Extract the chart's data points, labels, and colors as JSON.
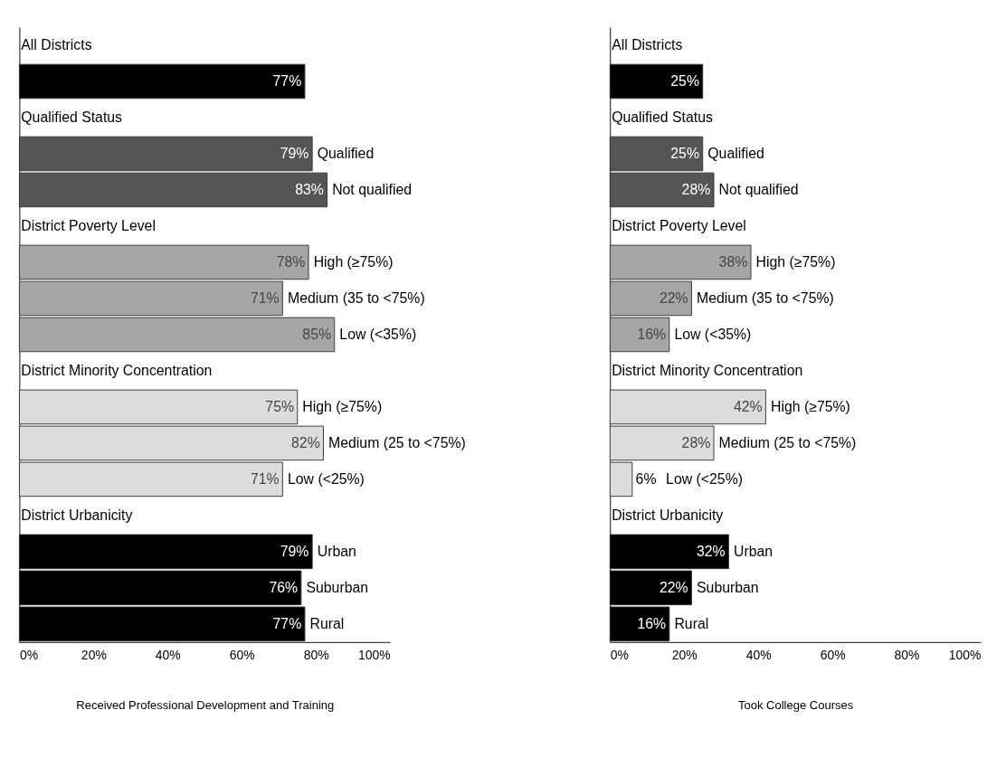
{
  "chart_data": [
    {
      "type": "bar",
      "orientation": "horizontal",
      "xlabel": "Received Professional Development and Training",
      "categories": [
        "All Districts",
        null,
        "Qualified Status",
        "Qualified",
        "Not qualified",
        "District Poverty Level",
        "High (≥75%)",
        "Medium (35 to <75%)",
        "Low (<35%)",
        "District Minority Concentration",
        "High (≥75%)",
        "Medium (25 to <75%)",
        "Low (<25%)",
        "District Urbanicity",
        "Urban",
        "Suburban",
        "Rural"
      ],
      "values": [
        null,
        77,
        null,
        79,
        83,
        null,
        78,
        71,
        85,
        null,
        75,
        82,
        71,
        null,
        79,
        76,
        77
      ],
      "value_labels": [
        null,
        "77%",
        null,
        "79%",
        "83%",
        null,
        "78%",
        "71%",
        "85%",
        null,
        "75%",
        "82%",
        "71%",
        null,
        "79%",
        "76%",
        "77%"
      ],
      "colors": [
        null,
        "#000000",
        null,
        "#555555",
        "#555555",
        null,
        "#a6a6a6",
        "#a6a6a6",
        "#a6a6a6",
        null,
        "#dcdcdc",
        "#dcdcdc",
        "#dcdcdc",
        null,
        "#000000",
        "#000000",
        "#000000"
      ],
      "xlim": [
        0,
        100
      ],
      "xticks": [
        {
          "value": 0,
          "label": "0%"
        },
        {
          "value": 20,
          "label": "20%"
        },
        {
          "value": 40,
          "label": "40%"
        },
        {
          "value": 60,
          "label": "60%"
        },
        {
          "value": 80,
          "label": "80%"
        },
        {
          "value": 100,
          "label": "100%"
        }
      ],
      "grid": false
    },
    {
      "type": "bar",
      "orientation": "horizontal",
      "xlabel": "Took College Courses",
      "categories": [
        "All Districts",
        null,
        "Qualified Status",
        "Qualified",
        "Not qualified",
        "District Poverty Level",
        "High (≥75%)",
        "Medium (35 to <75%)",
        "Low (<35%)",
        "District Minority Concentration",
        "High (≥75%)",
        "Medium (25 to <75%)",
        "Low (<25%)",
        "District Urbanicity",
        "Urban",
        "Suburban",
        "Rural"
      ],
      "values": [
        null,
        25,
        null,
        25,
        28,
        null,
        38,
        22,
        16,
        null,
        42,
        28,
        6,
        null,
        32,
        22,
        16
      ],
      "value_labels": [
        null,
        "25%",
        null,
        "25%",
        "28%",
        null,
        "38%",
        "22%",
        "16%",
        null,
        "42%",
        "28%",
        "6%",
        null,
        "32%",
        "22%",
        "16%"
      ],
      "colors": [
        null,
        "#000000",
        null,
        "#555555",
        "#555555",
        null,
        "#a6a6a6",
        "#a6a6a6",
        "#a6a6a6",
        null,
        "#dcdcdc",
        "#dcdcdc",
        "#dcdcdc",
        null,
        "#000000",
        "#000000",
        "#000000"
      ],
      "xlim": [
        0,
        100
      ],
      "xticks": [
        {
          "value": 0,
          "label": "0%"
        },
        {
          "value": 20,
          "label": "20%"
        },
        {
          "value": 40,
          "label": "40%"
        },
        {
          "value": 60,
          "label": "60%"
        },
        {
          "value": 80,
          "label": "80%"
        },
        {
          "value": 100,
          "label": "100%"
        }
      ],
      "grid": false
    }
  ]
}
